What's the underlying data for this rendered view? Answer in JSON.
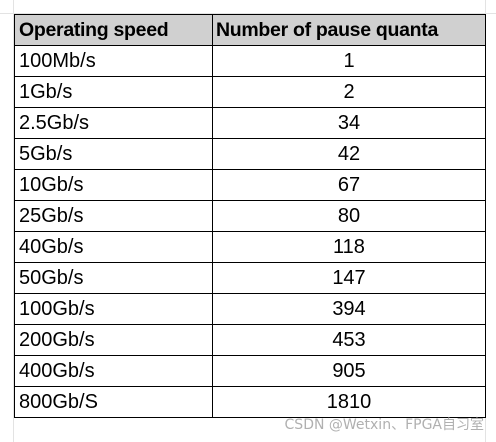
{
  "table": {
    "headers": [
      "Operating speed",
      "Number of pause quanta"
    ],
    "rows": [
      {
        "speed": "100Mb/s",
        "quanta": "1"
      },
      {
        "speed": "1Gb/s",
        "quanta": "2"
      },
      {
        "speed": "2.5Gb/s",
        "quanta": "34"
      },
      {
        "speed": "5Gb/s",
        "quanta": "42"
      },
      {
        "speed": "10Gb/s",
        "quanta": "67"
      },
      {
        "speed": "25Gb/s",
        "quanta": "80"
      },
      {
        "speed": "40Gb/s",
        "quanta": "118"
      },
      {
        "speed": "50Gb/s",
        "quanta": "147"
      },
      {
        "speed": "100Gb/s",
        "quanta": "394"
      },
      {
        "speed": "200Gb/s",
        "quanta": "453"
      },
      {
        "speed": "400Gb/s",
        "quanta": "905"
      },
      {
        "speed": "800Gb/S",
        "quanta": "1810"
      }
    ]
  },
  "watermark": "CSDN @Wetxin、FPGA自习室",
  "colors": {
    "header_background": "#d0d0d0",
    "border": "#000000",
    "gridline": "#e3e3e3"
  }
}
